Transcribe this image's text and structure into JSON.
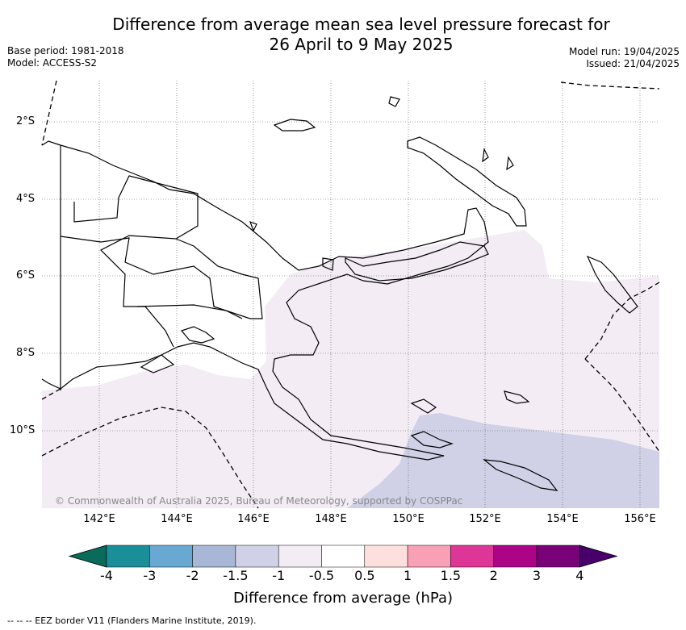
{
  "title_line1": "Difference from average mean sea level pressure forecast for",
  "title_line2": "26 April to 9 May 2025",
  "base_period": "Base period: 1981-2018",
  "model": "Model: ACCESS-S2",
  "model_run": "Model run: 19/04/2025",
  "issued": "Issued: 21/04/2025",
  "lat_ticks": [
    "2°S",
    "4°S",
    "6°S",
    "8°S",
    "10°S"
  ],
  "lon_ticks": [
    "142°E",
    "144°E",
    "146°E",
    "148°E",
    "150°E",
    "152°E",
    "154°E",
    "156°E"
  ],
  "copyright": "© Commonwealth of Australia 2025, Bureau of Meteorology, supported by COSPPac",
  "colorbar": {
    "title": "Difference from average (hPa)",
    "labels": [
      "-4",
      "-3",
      "-2",
      "-1.5",
      "-1",
      "-0.5",
      "0.5",
      "1",
      "1.5",
      "2",
      "3",
      "4"
    ],
    "colors": [
      "#0a6b5a",
      "#1b8f99",
      "#68a8d2",
      "#a9b7d6",
      "#d0d1e6",
      "#f3ecf5",
      "#ffffff",
      "#fde0dd",
      "#f8a0b5",
      "#de3696",
      "#ac0387",
      "#7a0177",
      "#49006a"
    ]
  },
  "eez_note": "-- -- -- EEZ border V11 (Flanders Marine Institute, 2019)."
}
